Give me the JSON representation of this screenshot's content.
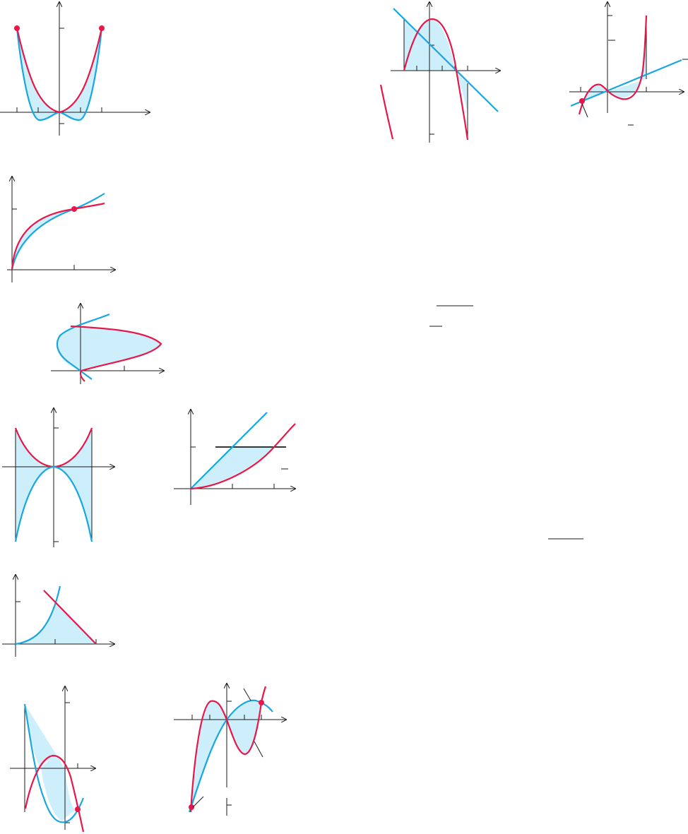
{
  "figures": [
    {
      "id": "w-curves",
      "description_hidden": true
    },
    {
      "id": "parabola-line"
    },
    {
      "id": "cubic-line"
    },
    {
      "id": "sqrt-curves"
    },
    {
      "id": "sideways-parabolas"
    },
    {
      "id": "quartic-mirror"
    },
    {
      "id": "line-parabola-horizontal"
    },
    {
      "id": "parabola-line-triangle"
    },
    {
      "id": "cubic-parabola"
    },
    {
      "id": "sine-like-curves"
    }
  ],
  "colors": {
    "curve_primary": "#e8174a",
    "curve_secondary": "#1aa6e0",
    "shaded_region": "#cdeefb",
    "axes": "#1a1a1a"
  }
}
